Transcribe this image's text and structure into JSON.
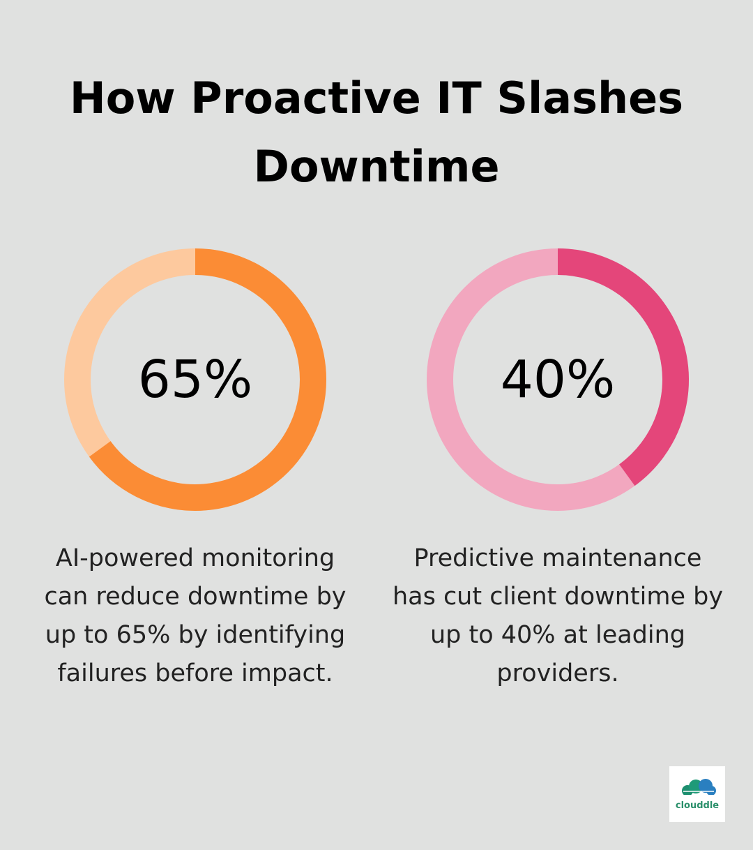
{
  "title": "How Proactive IT Slashes Downtime",
  "chart_data": [
    {
      "type": "donut",
      "values": [
        65
      ],
      "value_labels": [
        "65%"
      ],
      "color": "#fb8c35",
      "track_color": "#fdc99e",
      "caption": [
        "AI-powered monitoring",
        "can reduce downtime by",
        "up to 65% by identifying",
        "failures before impact."
      ]
    },
    {
      "type": "donut",
      "values": [
        40
      ],
      "value_labels": [
        "40%"
      ],
      "color": "#e4467a",
      "track_color": "#f2a7bf",
      "caption": [
        "Predictive maintenance",
        "has cut client downtime by",
        "up to 40% at leading",
        "providers."
      ]
    }
  ],
  "logo": {
    "text": "clouddle"
  }
}
